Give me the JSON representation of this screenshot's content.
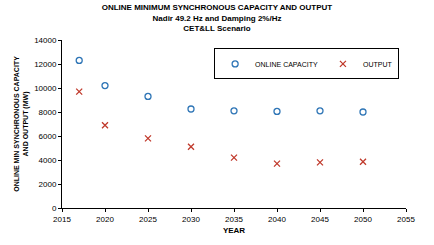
{
  "chart_data": {
    "type": "scatter",
    "title": "ONLINE MINIMUM SYNCHRONOUS CAPACITY AND OUTPUT",
    "subtitle": [
      "Nadir 49.2 Hz and Damping 2%/Hz",
      "CET&LL Scenario"
    ],
    "xlabel": "YEAR",
    "ylabel": [
      "ONLINE MIN SYNCHRONOUS CAPACITY",
      "AND OUTPUT (MW)"
    ],
    "x": [
      2017,
      2020,
      2025,
      2030,
      2035,
      2040,
      2045,
      2050
    ],
    "series": [
      {
        "name": "ONLINE CAPACITY",
        "color": "#2e75b6",
        "marker": "circle-open",
        "values": [
          12300,
          10200,
          9300,
          8250,
          8100,
          8050,
          8100,
          8000
        ]
      },
      {
        "name": "OUTPUT",
        "color": "#c0392b",
        "marker": "x",
        "values": [
          9700,
          6900,
          5800,
          5100,
          4200,
          3700,
          3800,
          3850
        ]
      }
    ],
    "xlim": [
      2015,
      2055
    ],
    "xticks": [
      2015,
      2020,
      2025,
      2030,
      2035,
      2040,
      2045,
      2050,
      2055
    ],
    "ylim": [
      0,
      14000
    ],
    "yticks": [
      0,
      2000,
      4000,
      6000,
      8000,
      10000,
      12000,
      14000
    ],
    "grid": false,
    "legend": "upper right"
  }
}
